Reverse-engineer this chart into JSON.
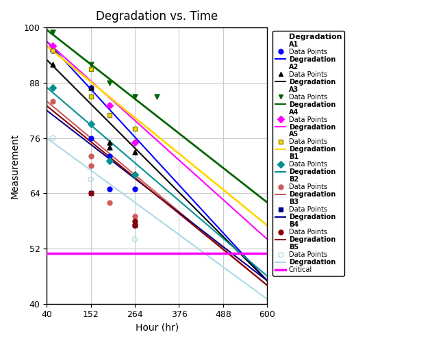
{
  "title": "Degradation vs. Time",
  "xlabel": "Hour (hr)",
  "ylabel": "Measurement",
  "xlim": [
    40,
    600
  ],
  "ylim": [
    40,
    100
  ],
  "xticks": [
    40,
    152,
    264,
    376,
    488,
    600
  ],
  "yticks": [
    40,
    52,
    64,
    76,
    88,
    100
  ],
  "critical_level": 51,
  "series": {
    "A1": {
      "color": "#0000FF",
      "marker": "o",
      "marker_color": "#0000FF",
      "points": [
        [
          56,
          95
        ],
        [
          152,
          87
        ],
        [
          152,
          76
        ],
        [
          200,
          72
        ],
        [
          200,
          65
        ],
        [
          264,
          65
        ]
      ],
      "line": [
        [
          40,
          97
        ],
        [
          600,
          45
        ]
      ]
    },
    "A2": {
      "color": "#000000",
      "marker": "^",
      "marker_color": "#000000",
      "points": [
        [
          56,
          92
        ],
        [
          152,
          87
        ],
        [
          200,
          75
        ],
        [
          200,
          74
        ],
        [
          264,
          73
        ]
      ],
      "line": [
        [
          40,
          93
        ],
        [
          600,
          45
        ]
      ]
    },
    "A3": {
      "color": "#006400",
      "marker": "v",
      "marker_color": "#006400",
      "points": [
        [
          56,
          99
        ],
        [
          152,
          92
        ],
        [
          200,
          88
        ],
        [
          264,
          85
        ],
        [
          320,
          85
        ]
      ],
      "line": [
        [
          40,
          99.5
        ],
        [
          600,
          62
        ]
      ]
    },
    "A4": {
      "color": "#FF00FF",
      "marker": "D",
      "marker_color": "#FF00FF",
      "points": [
        [
          56,
          96
        ],
        [
          200,
          83
        ],
        [
          264,
          75
        ]
      ],
      "line": [
        [
          40,
          97
        ],
        [
          600,
          54
        ]
      ]
    },
    "A5": {
      "color": "#FFD700",
      "marker": "s",
      "marker_color": "#FFD700",
      "points": [
        [
          56,
          95
        ],
        [
          152,
          91
        ],
        [
          152,
          85
        ],
        [
          200,
          81
        ],
        [
          264,
          78
        ]
      ],
      "line": [
        [
          40,
          96
        ],
        [
          600,
          57
        ]
      ]
    },
    "B1": {
      "color": "#008080",
      "marker": "D",
      "marker_color": "#008080",
      "points": [
        [
          56,
          87
        ],
        [
          152,
          79
        ],
        [
          200,
          71
        ],
        [
          264,
          68
        ]
      ],
      "line": [
        [
          40,
          87
        ],
        [
          600,
          46
        ]
      ]
    },
    "B2": {
      "color": "#CD5C5C",
      "marker": "o",
      "marker_color": "#CD5C5C",
      "points": [
        [
          56,
          84
        ],
        [
          152,
          72
        ],
        [
          152,
          70
        ],
        [
          200,
          62
        ],
        [
          264,
          59
        ],
        [
          264,
          57
        ]
      ],
      "line": [
        [
          40,
          84
        ],
        [
          600,
          44
        ]
      ]
    },
    "B3": {
      "color": "#00008B",
      "marker": "s",
      "marker_color": "#00008B",
      "points": [
        [
          152,
          64
        ],
        [
          264,
          57
        ]
      ],
      "line": [
        [
          40,
          82
        ],
        [
          600,
          45
        ]
      ]
    },
    "B4": {
      "color": "#8B0000",
      "marker": "o",
      "marker_color": "#8B0000",
      "points": [
        [
          152,
          64
        ],
        [
          264,
          58
        ],
        [
          264,
          57
        ]
      ],
      "line": [
        [
          40,
          84
        ],
        [
          600,
          44
        ]
      ]
    },
    "B5": {
      "color": "#ADD8E6",
      "marker": "o",
      "marker_color": "#ADD8E6",
      "marker_fill": "none",
      "points": [
        [
          56,
          76
        ],
        [
          152,
          67
        ],
        [
          264,
          54
        ]
      ],
      "line": [
        [
          40,
          76
        ],
        [
          600,
          41
        ]
      ]
    }
  }
}
